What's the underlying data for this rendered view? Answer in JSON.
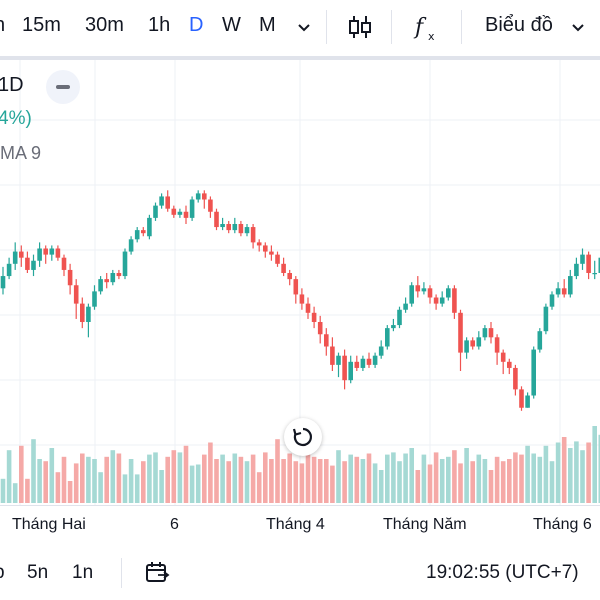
{
  "toolbar": {
    "intervals": [
      {
        "label": "n",
        "active": false
      },
      {
        "label": "15m",
        "active": false
      },
      {
        "label": "30m",
        "active": false
      },
      {
        "label": "1h",
        "active": false
      },
      {
        "label": "D",
        "active": true
      },
      {
        "label": "W",
        "active": false
      },
      {
        "label": "M",
        "active": false
      }
    ],
    "more_icon": "chevron-down-icon",
    "candles_icon": "candlestick-icon",
    "indicators_icon": "fx-icon",
    "chart_menu_label": "Biểu đồ",
    "chart_menu_icon": "chevron-down-icon"
  },
  "legend": {
    "interval_fragment": "1D",
    "change_fragment": "4%)",
    "indicator_fragment": "MA 9"
  },
  "colors": {
    "up": "#26a69a",
    "down": "#ef5350",
    "volume_up": "#a5d9d4",
    "volume_down": "#f5a9a7",
    "active": "#2962ff",
    "grid": "#edf0f5"
  },
  "chart_data": {
    "type": "candlestick",
    "x_labels": [
      "Tháng Hai",
      "6",
      "Tháng 4",
      "Tháng Năm",
      "Tháng 6"
    ],
    "candles": [
      {
        "o": 63,
        "c": 67,
        "h": 70,
        "l": 61
      },
      {
        "o": 67,
        "c": 71,
        "h": 73,
        "l": 66
      },
      {
        "o": 71,
        "c": 75,
        "h": 78,
        "l": 69
      },
      {
        "o": 75,
        "c": 73,
        "h": 77,
        "l": 70
      },
      {
        "o": 73,
        "c": 69,
        "h": 75,
        "l": 68
      },
      {
        "o": 69,
        "c": 72,
        "h": 74,
        "l": 67
      },
      {
        "o": 72,
        "c": 76,
        "h": 78,
        "l": 70
      },
      {
        "o": 76,
        "c": 74,
        "h": 77,
        "l": 71
      },
      {
        "o": 74,
        "c": 76,
        "h": 77,
        "l": 72
      },
      {
        "o": 76,
        "c": 73,
        "h": 77,
        "l": 72
      },
      {
        "o": 73,
        "c": 69,
        "h": 74,
        "l": 67
      },
      {
        "o": 69,
        "c": 64,
        "h": 71,
        "l": 61
      },
      {
        "o": 64,
        "c": 58,
        "h": 66,
        "l": 53
      },
      {
        "o": 58,
        "c": 52,
        "h": 60,
        "l": 50
      },
      {
        "o": 52,
        "c": 57,
        "h": 58,
        "l": 47
      },
      {
        "o": 57,
        "c": 62,
        "h": 64,
        "l": 56
      },
      {
        "o": 62,
        "c": 66,
        "h": 67,
        "l": 61
      },
      {
        "o": 66,
        "c": 65,
        "h": 68,
        "l": 63
      },
      {
        "o": 65,
        "c": 68,
        "h": 69,
        "l": 64
      },
      {
        "o": 68,
        "c": 67,
        "h": 69,
        "l": 66
      },
      {
        "o": 67,
        "c": 75,
        "h": 76,
        "l": 66
      },
      {
        "o": 75,
        "c": 79,
        "h": 80,
        "l": 74
      },
      {
        "o": 79,
        "c": 82,
        "h": 83,
        "l": 78
      },
      {
        "o": 82,
        "c": 81,
        "h": 83,
        "l": 80
      },
      {
        "o": 80,
        "c": 86,
        "h": 87,
        "l": 79
      },
      {
        "o": 86,
        "c": 90,
        "h": 91,
        "l": 85
      },
      {
        "o": 90,
        "c": 93,
        "h": 94,
        "l": 89
      },
      {
        "o": 93,
        "c": 89,
        "h": 95,
        "l": 88
      },
      {
        "o": 89,
        "c": 87,
        "h": 90,
        "l": 86
      },
      {
        "o": 87,
        "c": 88,
        "h": 89,
        "l": 86
      },
      {
        "o": 88,
        "c": 86,
        "h": 90,
        "l": 84
      },
      {
        "o": 86,
        "c": 92,
        "h": 93,
        "l": 85
      },
      {
        "o": 92,
        "c": 94,
        "h": 95,
        "l": 91
      },
      {
        "o": 94,
        "c": 92,
        "h": 95,
        "l": 89
      },
      {
        "o": 92,
        "c": 88,
        "h": 93,
        "l": 86
      },
      {
        "o": 88,
        "c": 83,
        "h": 89,
        "l": 82
      },
      {
        "o": 83,
        "c": 84,
        "h": 86,
        "l": 82
      },
      {
        "o": 84,
        "c": 82,
        "h": 85,
        "l": 81
      },
      {
        "o": 82,
        "c": 84,
        "h": 86,
        "l": 81
      },
      {
        "o": 84,
        "c": 81,
        "h": 85,
        "l": 80
      },
      {
        "o": 81,
        "c": 83,
        "h": 84,
        "l": 80
      },
      {
        "o": 83,
        "c": 78,
        "h": 84,
        "l": 76
      },
      {
        "o": 78,
        "c": 77,
        "h": 79,
        "l": 75
      },
      {
        "o": 77,
        "c": 75,
        "h": 78,
        "l": 73
      },
      {
        "o": 75,
        "c": 74,
        "h": 77,
        "l": 72
      },
      {
        "o": 74,
        "c": 71,
        "h": 75,
        "l": 70
      },
      {
        "o": 71,
        "c": 68,
        "h": 73,
        "l": 67
      },
      {
        "o": 68,
        "c": 66,
        "h": 69,
        "l": 64
      },
      {
        "o": 66,
        "c": 61,
        "h": 67,
        "l": 58
      },
      {
        "o": 61,
        "c": 58,
        "h": 63,
        "l": 56
      },
      {
        "o": 58,
        "c": 55,
        "h": 60,
        "l": 53
      },
      {
        "o": 55,
        "c": 52,
        "h": 57,
        "l": 50
      },
      {
        "o": 52,
        "c": 48,
        "h": 54,
        "l": 45
      },
      {
        "o": 48,
        "c": 44,
        "h": 50,
        "l": 41
      },
      {
        "o": 44,
        "c": 38,
        "h": 47,
        "l": 36
      },
      {
        "o": 38,
        "c": 41,
        "h": 42,
        "l": 34
      },
      {
        "o": 41,
        "c": 33,
        "h": 43,
        "l": 30
      },
      {
        "o": 33,
        "c": 39,
        "h": 41,
        "l": 32
      },
      {
        "o": 39,
        "c": 37,
        "h": 41,
        "l": 36
      },
      {
        "o": 37,
        "c": 40,
        "h": 41,
        "l": 36
      },
      {
        "o": 40,
        "c": 38,
        "h": 42,
        "l": 37
      },
      {
        "o": 38,
        "c": 41,
        "h": 42,
        "l": 37
      },
      {
        "o": 41,
        "c": 44,
        "h": 46,
        "l": 40
      },
      {
        "o": 44,
        "c": 50,
        "h": 51,
        "l": 43
      },
      {
        "o": 50,
        "c": 51,
        "h": 53,
        "l": 49
      },
      {
        "o": 51,
        "c": 56,
        "h": 57,
        "l": 50
      },
      {
        "o": 56,
        "c": 58,
        "h": 60,
        "l": 55
      },
      {
        "o": 58,
        "c": 64,
        "h": 65,
        "l": 57
      },
      {
        "o": 64,
        "c": 62,
        "h": 67,
        "l": 60
      },
      {
        "o": 62,
        "c": 63,
        "h": 65,
        "l": 61
      },
      {
        "o": 63,
        "c": 60,
        "h": 64,
        "l": 58
      },
      {
        "o": 60,
        "c": 58,
        "h": 61,
        "l": 56
      },
      {
        "o": 58,
        "c": 60,
        "h": 62,
        "l": 57
      },
      {
        "o": 60,
        "c": 63,
        "h": 64,
        "l": 59
      },
      {
        "o": 63,
        "c": 55,
        "h": 64,
        "l": 53
      },
      {
        "o": 55,
        "c": 42,
        "h": 56,
        "l": 36
      },
      {
        "o": 42,
        "c": 46,
        "h": 47,
        "l": 40
      },
      {
        "o": 46,
        "c": 44,
        "h": 47,
        "l": 43
      },
      {
        "o": 44,
        "c": 47,
        "h": 49,
        "l": 43
      },
      {
        "o": 47,
        "c": 50,
        "h": 51,
        "l": 46
      },
      {
        "o": 50,
        "c": 47,
        "h": 52,
        "l": 45
      },
      {
        "o": 47,
        "c": 42,
        "h": 48,
        "l": 38
      },
      {
        "o": 42,
        "c": 39,
        "h": 43,
        "l": 35
      },
      {
        "o": 39,
        "c": 37,
        "h": 40,
        "l": 35
      },
      {
        "o": 37,
        "c": 30,
        "h": 38,
        "l": 28
      },
      {
        "o": 30,
        "c": 24,
        "h": 31,
        "l": 23
      },
      {
        "o": 24,
        "c": 28,
        "h": 29,
        "l": 24
      },
      {
        "o": 28,
        "c": 43,
        "h": 44,
        "l": 27
      },
      {
        "o": 43,
        "c": 49,
        "h": 50,
        "l": 42
      },
      {
        "o": 49,
        "c": 57,
        "h": 58,
        "l": 48
      },
      {
        "o": 57,
        "c": 61,
        "h": 62,
        "l": 56
      },
      {
        "o": 61,
        "c": 63,
        "h": 65,
        "l": 60
      },
      {
        "o": 63,
        "c": 61,
        "h": 66,
        "l": 60
      },
      {
        "o": 61,
        "c": 67,
        "h": 69,
        "l": 60
      },
      {
        "o": 67,
        "c": 71,
        "h": 73,
        "l": 66
      },
      {
        "o": 71,
        "c": 74,
        "h": 76,
        "l": 69
      },
      {
        "o": 74,
        "c": 68,
        "h": 75,
        "l": 66
      },
      {
        "o": 68,
        "c": 68,
        "h": 72,
        "l": 66
      },
      {
        "o": 68,
        "c": 73,
        "h": 74,
        "l": 67
      },
      {
        "o": 73,
        "c": 78,
        "h": 80,
        "l": 72
      }
    ],
    "volume": [
      22,
      48,
      18,
      52,
      22,
      58,
      40,
      38,
      50,
      28,
      42,
      20,
      36,
      45,
      42,
      40,
      28,
      42,
      48,
      45,
      26,
      40,
      26,
      38,
      44,
      46,
      30,
      42,
      48,
      46,
      52,
      34,
      35,
      44,
      55,
      40,
      44,
      38,
      45,
      42,
      38,
      44,
      28,
      46,
      40,
      58,
      40,
      45,
      38,
      36,
      46,
      42,
      40,
      40,
      34,
      48,
      38,
      44,
      42,
      40,
      45,
      36,
      30,
      44,
      46,
      38,
      45,
      50,
      30,
      44,
      35,
      46,
      40,
      42,
      48,
      36,
      50,
      38,
      44,
      40,
      30,
      42,
      38,
      40,
      46,
      44,
      52,
      45,
      42,
      52,
      38,
      55,
      60,
      50,
      56,
      48,
      55,
      70,
      62,
      82
    ]
  },
  "reset_icon": "reset-icon",
  "bottom": {
    "ranges": [
      "p",
      "5n",
      "1n"
    ],
    "date_range_icon": "calendar-icon",
    "clock": "19:02:55 (UTC+7)"
  }
}
